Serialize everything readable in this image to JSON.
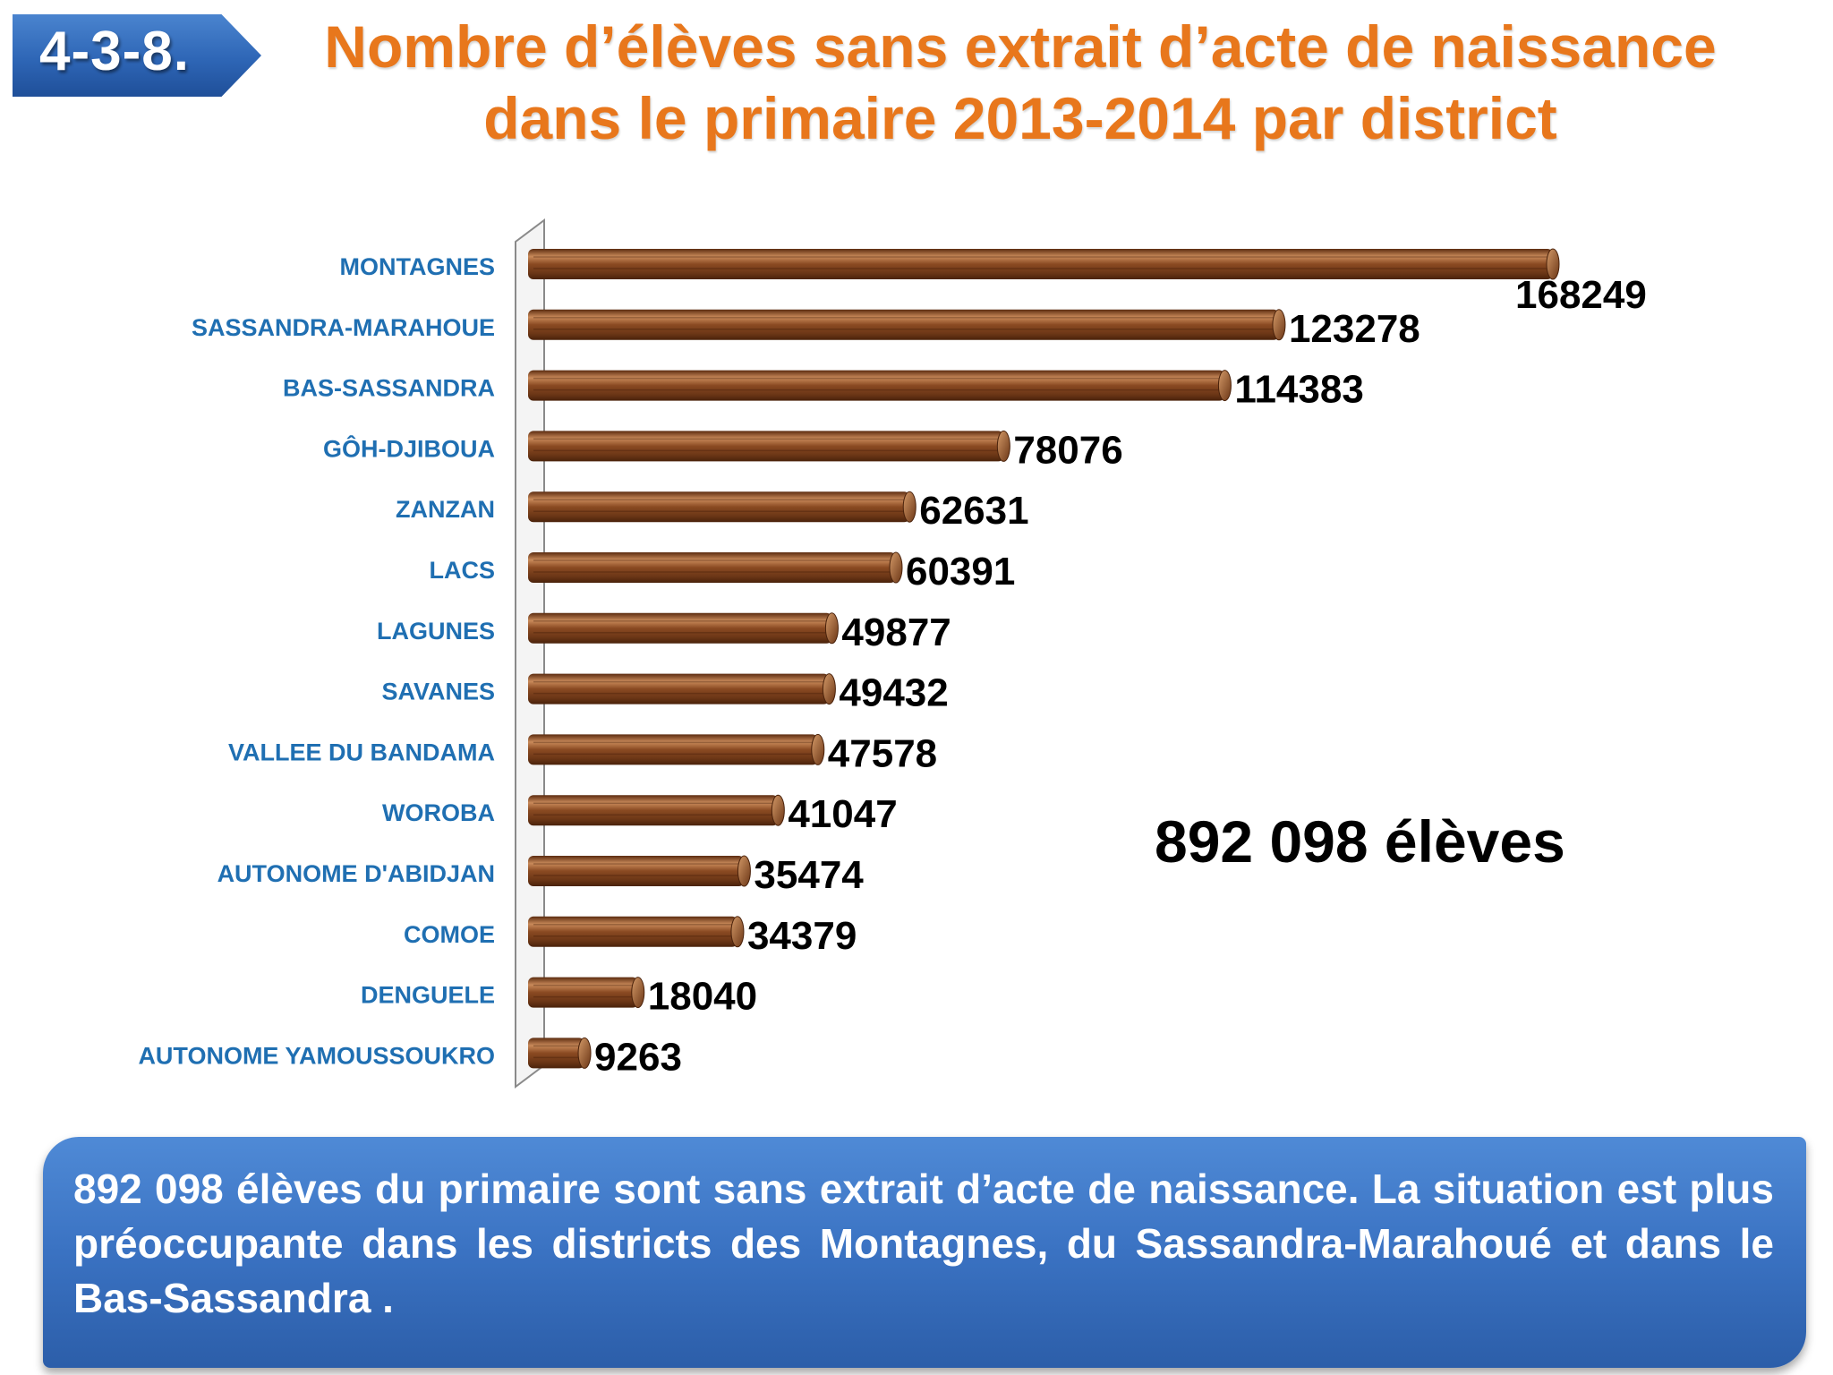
{
  "header": {
    "number": "4-3-8.",
    "title": "Nombre d’élèves sans extrait d’acte de naissance dans le primaire 2013-2014 par district"
  },
  "chart_data": {
    "type": "bar",
    "orientation": "horizontal",
    "categories": [
      "MONTAGNES",
      "SASSANDRA-MARAHOUE",
      "BAS-SASSANDRA",
      "GÔH-DJIBOUA",
      "ZANZAN",
      "LACS",
      "LAGUNES",
      "SAVANES",
      "VALLEE DU BANDAMA",
      "WOROBA",
      "AUTONOME D'ABIDJAN",
      "COMOE",
      "DENGUELE",
      "AUTONOME YAMOUSSOUKRO"
    ],
    "values": [
      168249,
      123278,
      114383,
      78076,
      62631,
      60391,
      49877,
      49432,
      47578,
      41047,
      35474,
      34379,
      18040,
      9263
    ],
    "value_labels": [
      "168249",
      "123278",
      "114383",
      "78076",
      "62631",
      "60391",
      "49877",
      "49432",
      "47578",
      "41047",
      "35474",
      "34379",
      "18040",
      "9263"
    ],
    "xlim": [
      0,
      168249
    ],
    "grid": false,
    "legend": "none",
    "colors": {
      "bar": "#8a4a22",
      "bar_light": "#c98a5a",
      "bar_dark": "#5c2c10",
      "category_label": "#1f6fb2"
    }
  },
  "total_label": "892 098 élèves",
  "note": {
    "text": "892 098 élèves du primaire sont sans extrait d’acte de naissance. La situation est plus préoccupante dans les districts des Montagnes, du Sassandra-Marahoué et dans le Bas-Sassandra ."
  }
}
